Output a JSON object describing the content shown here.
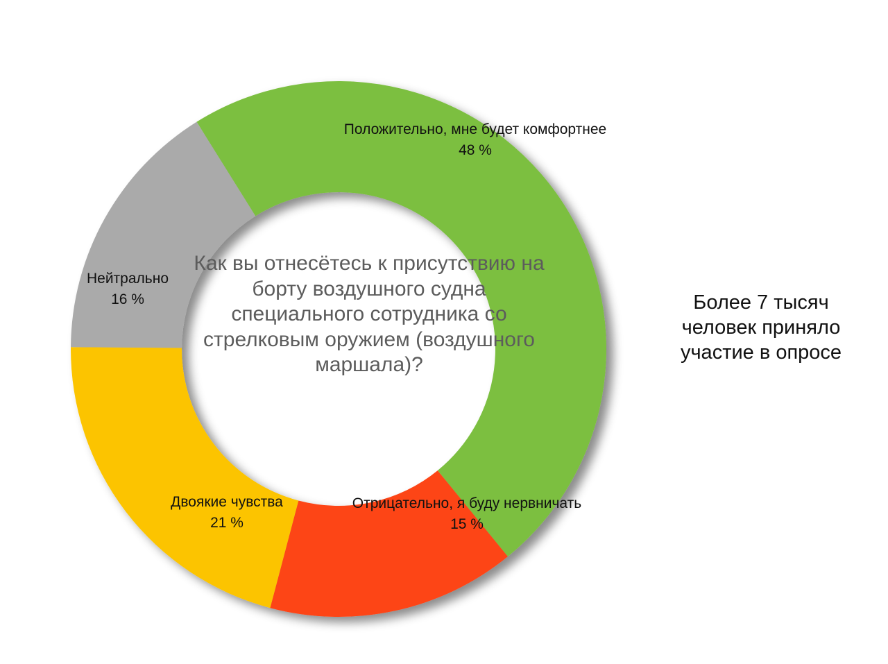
{
  "chart_data": {
    "type": "pie",
    "donut": true,
    "title": "",
    "center_text": "Как вы отнесётесь к присутствию на борту воздушного судна специального сотрудника со стрелковым оружием (воздушного маршала)?",
    "slices": [
      {
        "label": "Положительно, мне будет комфортнее",
        "value": 48,
        "value_label": "48 %",
        "color": "#7bbf40"
      },
      {
        "label": "Отрицательно, я буду нервничать",
        "value": 15,
        "value_label": "15 %",
        "color": "#fd4419"
      },
      {
        "label": "Двоякие чувства",
        "value": 21,
        "value_label": "21 %",
        "color": "#fcc400"
      },
      {
        "label": "Нейтрально",
        "value": 16,
        "value_label": "16 %",
        "color": "#aaaaaa"
      }
    ]
  },
  "side_note": "Более 7 тысяч человек приняло участие в опросе"
}
